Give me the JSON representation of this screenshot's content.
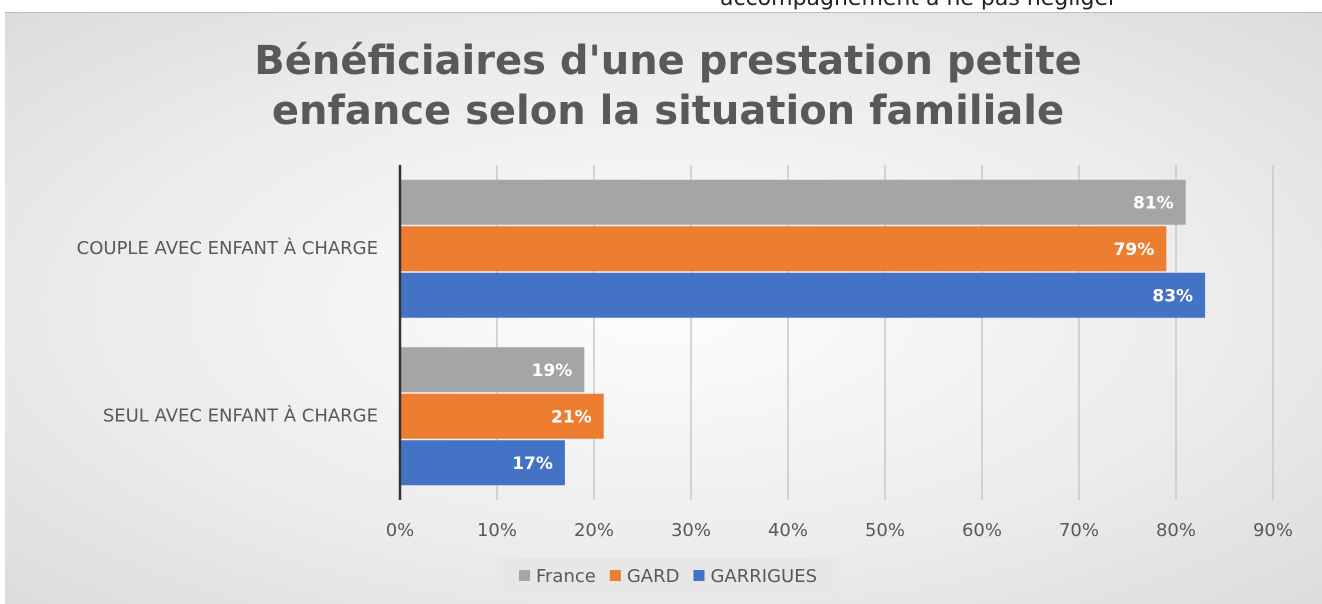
{
  "top_text": "accompagnement à ne pas négliger",
  "chart_data": {
    "type": "hbar",
    "title": "Bénéficiaires d'une prestation petite enfance selon la situation familiale",
    "categories": [
      "COUPLE AVEC ENFANT À CHARGE",
      "SEUL AVEC ENFANT À CHARGE"
    ],
    "series": [
      {
        "name": "France",
        "color": "#a5a5a5",
        "values": [
          81,
          19
        ],
        "value_labels": [
          "81%",
          "19%"
        ]
      },
      {
        "name": "GARD",
        "color": "#ed7d31",
        "values": [
          79,
          21
        ],
        "value_labels": [
          "79%",
          "21%"
        ]
      },
      {
        "name": "GARRIGUES",
        "color": "#4472c4",
        "values": [
          83,
          17
        ],
        "value_labels": [
          "83%",
          "17%"
        ]
      }
    ],
    "xlim": [
      0,
      90
    ],
    "xticks": [
      {
        "value": 0,
        "label": "0%"
      },
      {
        "value": 10,
        "label": "10%"
      },
      {
        "value": 20,
        "label": "20%"
      },
      {
        "value": 30,
        "label": "30%"
      },
      {
        "value": 40,
        "label": "40%"
      },
      {
        "value": 50,
        "label": "50%"
      },
      {
        "value": 60,
        "label": "60%"
      },
      {
        "value": 70,
        "label": "70%"
      },
      {
        "value": 80,
        "label": "80%"
      },
      {
        "value": 90,
        "label": "90%"
      }
    ],
    "grid": true,
    "legend": "bottom"
  }
}
